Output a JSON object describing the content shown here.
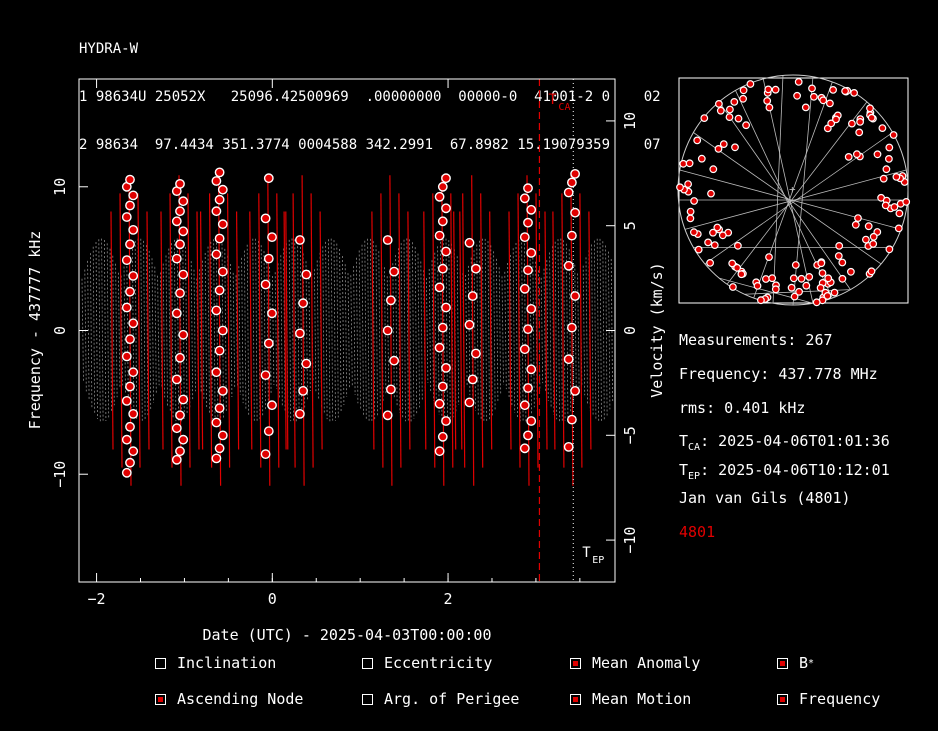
{
  "tle": {
    "name": "HYDRA-W",
    "line1": "1 98634U 25052X   25096.42500969  .00000000  00000-0  41001-2 0    02",
    "line2": "2 98634  97.4434 351.3774 0004588 342.2991  67.8982 15.19079359    07"
  },
  "info": {
    "measurements": "Measurements: 267",
    "frequency": "Frequency: 437.778 MHz",
    "rms": "rms: 0.401 kHz",
    "tca_label": "T",
    "tca_sub": "CA",
    "tca_value": ": 2025-04-06T01:01:36",
    "tep_label": "T",
    "tep_sub": "EP",
    "tep_value": ": 2025-04-06T10:12:01",
    "observer": "Jan van Gils (4801)",
    "station_id": "4801",
    "station_color": "#e00000"
  },
  "options": [
    {
      "label": "Inclination",
      "checked": false
    },
    {
      "label": "Eccentricity",
      "checked": false
    },
    {
      "label": "Mean Anomaly",
      "checked": true
    },
    {
      "label": "B",
      "sup": "*",
      "checked": true
    },
    {
      "label": "Ascending Node",
      "checked": true
    },
    {
      "label": "Arg. of Perigee",
      "checked": false
    },
    {
      "label": "Mean Motion",
      "checked": true
    },
    {
      "label": "Frequency",
      "checked": true
    }
  ],
  "chart_data": {
    "type": "scatter",
    "xlabel": "Date (UTC) - 2025-04-03T00:00:00",
    "ylabel": "Frequency - 437777 kHz",
    "y2label": "Velocity (km/s)",
    "xlim": [
      -2.2,
      3.9
    ],
    "ylim": [
      -17.5,
      17.5
    ],
    "y2lim": [
      -12.0,
      12.0
    ],
    "xticks": [
      -2,
      0,
      2
    ],
    "yticks": [
      -10,
      0,
      10
    ],
    "y2ticks": [
      -10,
      -5,
      0,
      5,
      10
    ],
    "tca_x": 3.04,
    "tca_label": "T",
    "tca_sub": "CA",
    "tep_x": 3.425,
    "tep_label": "T",
    "tep_sub": "EP",
    "colors": {
      "measurement": "#e00000",
      "model_pass": "#e00000",
      "model_bg": "#8a8a8a",
      "tca": "#e00000",
      "tep": "#ffffff"
    },
    "passes": [
      {
        "x": -1.62,
        "points": [
          -9.9,
          -9.2,
          -8.4,
          -7.6,
          -6.7,
          -5.8,
          -4.9,
          -3.9,
          -2.9,
          -1.8,
          -0.6,
          0.5,
          1.6,
          2.7,
          3.8,
          4.9,
          6.0,
          7.0,
          7.9,
          8.7,
          9.4,
          10.0,
          10.5
        ]
      },
      {
        "x": -1.05,
        "points": [
          -9.0,
          -8.4,
          -7.6,
          -6.8,
          -5.9,
          -4.8,
          -3.4,
          -1.9,
          -0.3,
          1.2,
          2.6,
          3.9,
          5.0,
          6.0,
          6.9,
          7.6,
          8.3,
          9.0,
          9.7,
          10.2
        ]
      },
      {
        "x": -0.6,
        "points": [
          -8.9,
          -8.2,
          -7.3,
          -6.4,
          -5.4,
          -4.2,
          -2.9,
          -1.4,
          0.0,
          1.4,
          2.8,
          4.1,
          5.3,
          6.4,
          7.4,
          8.3,
          9.1,
          9.8,
          10.4,
          11.0
        ]
      },
      {
        "x": -0.04,
        "points": [
          -8.6,
          -7.0,
          -5.2,
          -3.1,
          -0.9,
          1.2,
          3.2,
          5.0,
          6.5,
          7.8,
          10.6
        ]
      },
      {
        "x": 0.35,
        "points": [
          -5.8,
          -4.2,
          -2.3,
          -0.2,
          1.9,
          3.9,
          6.3
        ]
      },
      {
        "x": 1.35,
        "points": [
          -5.9,
          -4.1,
          -2.1,
          0.0,
          2.1,
          4.1,
          6.3
        ]
      },
      {
        "x": 1.94,
        "points": [
          -8.4,
          -7.4,
          -6.3,
          -5.1,
          -3.9,
          -2.6,
          -1.2,
          0.2,
          1.6,
          3.0,
          4.3,
          5.5,
          6.6,
          7.6,
          8.5,
          9.3,
          10.0,
          10.6
        ]
      },
      {
        "x": 2.28,
        "points": [
          -5.0,
          -3.4,
          -1.6,
          0.4,
          2.4,
          4.3,
          6.1
        ]
      },
      {
        "x": 2.91,
        "points": [
          -8.2,
          -7.3,
          -6.3,
          -5.2,
          -4.0,
          -2.7,
          -1.3,
          0.1,
          1.5,
          2.9,
          4.2,
          5.4,
          6.5,
          7.5,
          8.4,
          9.2,
          9.9
        ]
      },
      {
        "x": 3.41,
        "points": [
          -8.1,
          -6.2,
          -4.2,
          -2.0,
          0.2,
          2.4,
          4.5,
          6.6,
          8.2,
          9.6,
          10.3,
          10.9
        ]
      }
    ],
    "polar_plot": {
      "title": "",
      "has_grid": true
    }
  }
}
